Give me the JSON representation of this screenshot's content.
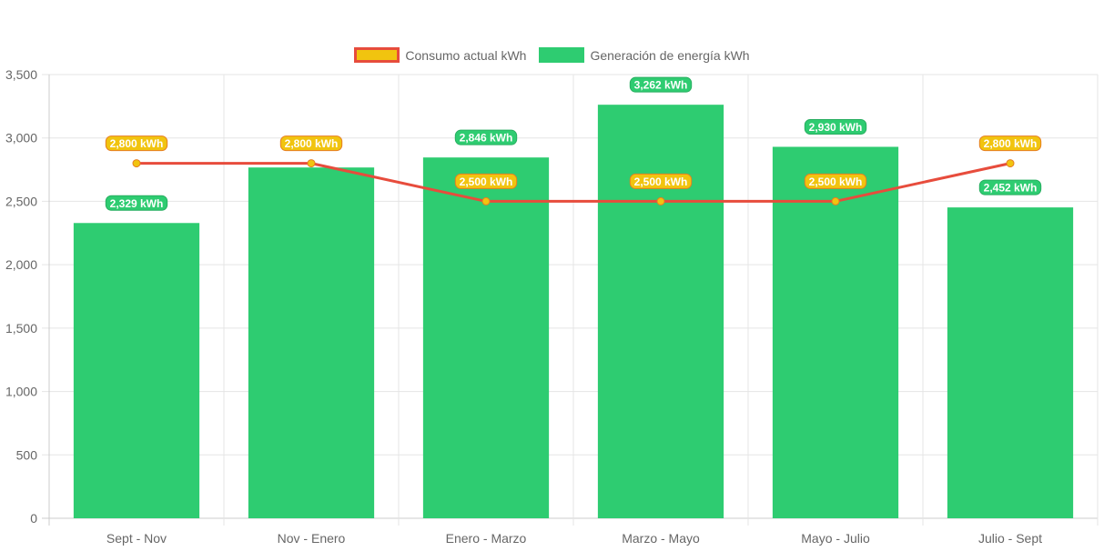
{
  "chart_data": {
    "type": "bar",
    "categories": [
      "Sept - Nov",
      "Nov - Enero",
      "Enero - Marzo",
      "Marzo - Mayo",
      "Mayo - Julio",
      "Julio - Sept"
    ],
    "series": [
      {
        "name": "Generación de energía kWh",
        "type": "bar",
        "values": [
          2329,
          2767,
          2846,
          3262,
          2930,
          2452
        ],
        "labels": [
          "2,329 kWh",
          "",
          "2,846 kWh",
          "3,262 kWh",
          "2,930 kWh",
          "2,452 kWh"
        ],
        "color": "#2ecc71"
      },
      {
        "name": "Consumo actual kWh",
        "type": "line",
        "values": [
          2800,
          2800,
          2500,
          2500,
          2500,
          2800
        ],
        "labels": [
          "2,800 kWh",
          "2,800 kWh",
          "2,500 kWh",
          "2,500 kWh",
          "2,500 kWh",
          "2,800 kWh"
        ],
        "color": "#e74c3c",
        "point_color": "#f1c40f"
      }
    ],
    "ylim": [
      0,
      3500
    ],
    "yticks": [
      0,
      500,
      1000,
      1500,
      2000,
      2500,
      3000,
      3500
    ],
    "ytick_labels": [
      "0",
      "500",
      "1,000",
      "1,500",
      "2,000",
      "2,500",
      "3,000",
      "3,500"
    ],
    "grid": true,
    "legend_position": "top-center",
    "title": "",
    "xlabel": "",
    "ylabel": ""
  },
  "legend": {
    "consumo": "Consumo actual kWh",
    "generacion": "Generación de energía kWh"
  },
  "colors": {
    "bar": "#2ecc71",
    "line": "#e74c3c",
    "point": "#f1c40f",
    "grid": "#e5e5e5",
    "axis_text": "#666666"
  }
}
